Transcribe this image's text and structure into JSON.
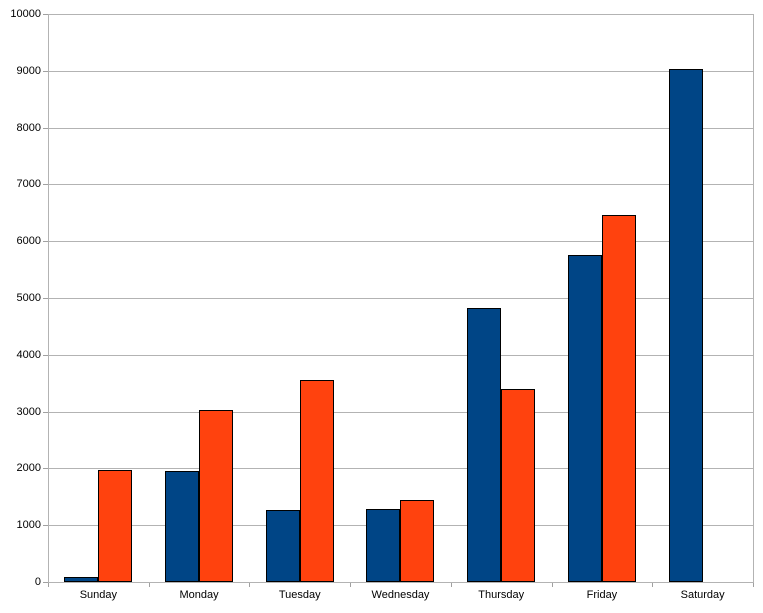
{
  "chart_data": {
    "type": "bar",
    "title": "",
    "xlabel": "",
    "ylabel": "",
    "categories": [
      "Sunday",
      "Monday",
      "Tuesday",
      "Wednesday",
      "Thursday",
      "Friday",
      "Saturday"
    ],
    "series": [
      {
        "name": "blue-series",
        "color": "#004586",
        "values": [
          90,
          1950,
          1270,
          1290,
          4820,
          5765,
          9040
        ]
      },
      {
        "name": "orange-series",
        "color": "#ff420e",
        "values": [
          1980,
          3030,
          3550,
          1440,
          3400,
          6465,
          null
        ]
      }
    ],
    "ylim": [
      0,
      10000
    ],
    "ytick_step": 1000,
    "yticks": [
      "0",
      "1000",
      "2000",
      "3000",
      "4000",
      "5000",
      "6000",
      "7000",
      "8000",
      "9000",
      "10000"
    ],
    "grid": true,
    "legend": false,
    "colors": {
      "gridline": "#b3b3b3",
      "axis": "#b3b3b3",
      "bar_outline": "#000000",
      "background": "#ffffff",
      "label_text": "#000000"
    }
  }
}
